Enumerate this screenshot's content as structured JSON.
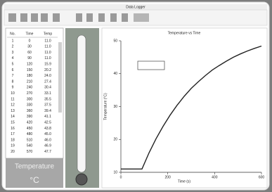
{
  "window": {
    "title": "Data Logger"
  },
  "table": {
    "header": [
      "No.",
      "Time",
      "Temp"
    ],
    "rows": [
      [
        "1",
        "0",
        "11.0"
      ],
      [
        "2",
        "30",
        "11.0"
      ],
      [
        "3",
        "60",
        "11.0"
      ],
      [
        "4",
        "90",
        "11.0"
      ],
      [
        "5",
        "120",
        "15.9"
      ],
      [
        "6",
        "150",
        "20.2"
      ],
      [
        "7",
        "180",
        "24.0"
      ],
      [
        "8",
        "210",
        "27.4"
      ],
      [
        "9",
        "240",
        "30.4"
      ],
      [
        "10",
        "270",
        "33.1"
      ],
      [
        "11",
        "300",
        "35.5"
      ],
      [
        "12",
        "330",
        "37.5"
      ],
      [
        "13",
        "360",
        "39.4"
      ],
      [
        "14",
        "390",
        "41.1"
      ],
      [
        "15",
        "420",
        "42.5"
      ],
      [
        "16",
        "450",
        "43.8"
      ],
      [
        "17",
        "480",
        "45.0"
      ],
      [
        "18",
        "510",
        "46.0"
      ],
      [
        "19",
        "540",
        "46.9"
      ],
      [
        "20",
        "570",
        "47.7"
      ]
    ]
  },
  "display": {
    "label": "Temperature",
    "unit": "°C"
  },
  "graph": {
    "title": "Temperature vs Time",
    "x_label": "Time (s)",
    "y_label": "Temperature (°C)",
    "x": [
      0,
      30,
      60,
      90,
      120,
      150,
      180,
      210,
      240,
      270,
      300,
      330,
      360,
      390,
      420,
      450,
      480,
      510,
      540,
      570,
      600
    ],
    "values": [
      11,
      11,
      11,
      11,
      15.9,
      20.2,
      24.0,
      27.4,
      30.4,
      33.1,
      35.5,
      37.5,
      39.4,
      41.1,
      42.5,
      43.8,
      45.0,
      46.0,
      46.9,
      47.7,
      48.4
    ],
    "color": "#222222",
    "xlim": [
      0,
      600
    ],
    "ylim": [
      10,
      50
    ],
    "xticks": [
      0,
      200,
      400,
      600
    ],
    "yticks": [
      10,
      20,
      30,
      40,
      50
    ]
  }
}
